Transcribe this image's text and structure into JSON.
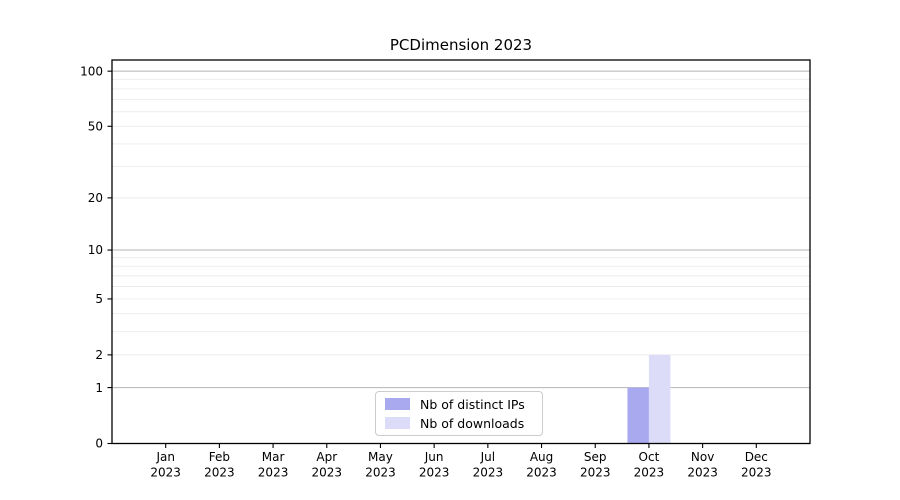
{
  "title": "PCDimension 2023",
  "chart_data": {
    "type": "bar",
    "title": "PCDimension 2023",
    "categories": [
      "Jan 2023",
      "Feb 2023",
      "Mar 2023",
      "Apr 2023",
      "May 2023",
      "Jun 2023",
      "Jul 2023",
      "Aug 2023",
      "Sep 2023",
      "Oct 2023",
      "Nov 2023",
      "Dec 2023"
    ],
    "series": [
      {
        "name": "Nb of distinct IPs",
        "color": "#a9a9f0",
        "values": [
          0,
          0,
          0,
          0,
          0,
          0,
          0,
          0,
          0,
          1,
          0,
          0
        ]
      },
      {
        "name": "Nb of downloads",
        "color": "#dcdcf8",
        "values": [
          0,
          0,
          0,
          0,
          0,
          0,
          0,
          0,
          0,
          2,
          0,
          0
        ]
      }
    ],
    "xlabel": "",
    "ylabel": "",
    "yscale": "log1p",
    "ylim": [
      0,
      115
    ],
    "yticks_labeled": [
      0,
      1,
      2,
      5,
      10,
      20,
      50,
      100
    ],
    "yticks_major": [
      1,
      10,
      100
    ],
    "grid": "both",
    "legend_position": "lower center",
    "colors": {
      "grid_major": "#b5b5b5",
      "grid_minor": "#ebebeb",
      "spine": "#000000"
    }
  }
}
